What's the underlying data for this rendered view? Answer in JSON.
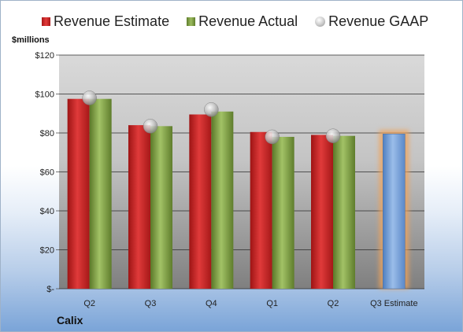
{
  "legend": {
    "estimate": "Revenue Estimate",
    "actual": "Revenue Actual",
    "gaap": "Revenue GAAP"
  },
  "units_label": "$millions",
  "company": "Calix",
  "colors": {
    "estimate": "#c62828",
    "actual": "#7d9a45",
    "gaap": "#b8b8b8",
    "q3_estimate": "#6f9bd6",
    "highlight": "#f0a35a"
  },
  "chart_data": {
    "type": "bar",
    "categories": [
      "Q2",
      "Q3",
      "Q4",
      "Q1",
      "Q2",
      "Q3 Estimate"
    ],
    "y_tick_labels": [
      "$-",
      "$20",
      "$40",
      "$60",
      "$80",
      "$100",
      "$120"
    ],
    "ylim": [
      0,
      120
    ],
    "grid": true,
    "legend_position": "top",
    "series": [
      {
        "name": "Revenue Estimate",
        "values": [
          97.5,
          84,
          89.5,
          80.5,
          79,
          null
        ]
      },
      {
        "name": "Revenue Actual",
        "values": [
          97.5,
          83.5,
          91,
          78,
          78.5,
          null
        ]
      },
      {
        "name": "Revenue GAAP",
        "values": [
          98,
          83.5,
          92,
          78,
          78.5,
          null
        ]
      }
    ],
    "forecast": {
      "category": "Q3 Estimate",
      "value": 79.5
    }
  }
}
